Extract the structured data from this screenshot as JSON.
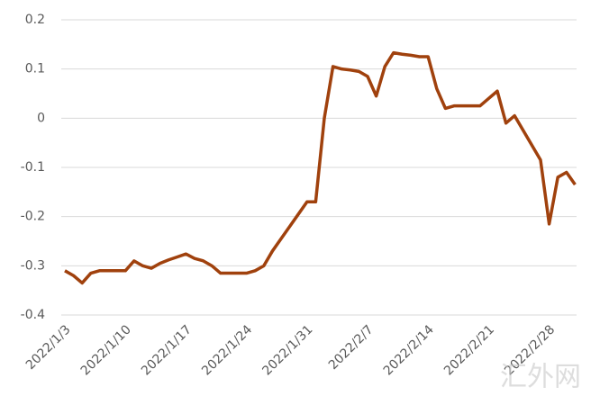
{
  "chart_data": {
    "type": "line",
    "categories": [
      "2022/1/3",
      null,
      null,
      null,
      null,
      null,
      null,
      "2022/1/10",
      null,
      null,
      null,
      null,
      null,
      null,
      "2022/1/17",
      null,
      null,
      null,
      null,
      null,
      null,
      "2022/1/24",
      null,
      null,
      null,
      null,
      null,
      null,
      "2022/1/31",
      null,
      null,
      null,
      null,
      null,
      null,
      "2022/2/7",
      null,
      null,
      null,
      null,
      null,
      null,
      "2022/2/14",
      null,
      null,
      null,
      null,
      null,
      null,
      "2022/2/21",
      null,
      null,
      null,
      null,
      null,
      null,
      "2022/2/28",
      null,
      null,
      null
    ],
    "values": [
      -0.31,
      -0.32,
      -0.335,
      -0.315,
      -0.31,
      -0.31,
      -0.31,
      -0.31,
      -0.29,
      -0.3,
      -0.305,
      -0.295,
      -0.288,
      -0.282,
      -0.276,
      -0.285,
      -0.29,
      -0.3,
      -0.315,
      -0.315,
      -0.315,
      -0.315,
      -0.31,
      -0.3,
      -0.27,
      -0.245,
      -0.22,
      -0.195,
      -0.17,
      -0.17,
      0.0,
      0.105,
      0.1,
      0.098,
      0.095,
      0.085,
      0.045,
      0.105,
      0.133,
      0.13,
      0.128,
      0.125,
      0.125,
      0.06,
      0.02,
      0.025,
      0.025,
      0.025,
      0.025,
      0.04,
      0.055,
      -0.01,
      0.005,
      -0.025,
      -0.055,
      -0.085,
      -0.215,
      -0.12,
      -0.11,
      -0.135
    ],
    "color": "#a0410d",
    "ylim": [
      -0.4,
      0.2
    ],
    "yticks": [
      -0.4,
      -0.3,
      -0.2,
      -0.1,
      0,
      0.1,
      0.2
    ],
    "grid": true,
    "watermark": "汇外网"
  }
}
